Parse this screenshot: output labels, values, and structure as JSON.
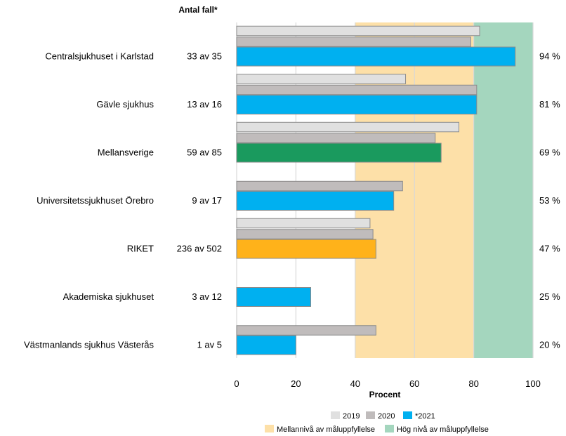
{
  "chart_data": {
    "type": "bar",
    "orientation": "horizontal",
    "count_header": "Antal fall*",
    "xlabel": "Procent",
    "xlim": [
      0,
      100
    ],
    "xticks": [
      "0",
      "20",
      "40",
      "60",
      "80",
      "100"
    ],
    "grid": true,
    "categories": [
      "Centralsjukhuset i Karlstad",
      "Gävle sjukhus",
      "Mellansverige",
      "Universitetssjukhuset Örebro",
      "RIKET",
      "Akademiska sjukhuset",
      "Västmanlands sjukhus Västerås"
    ],
    "counts": [
      "33 av 35",
      "13 av 16",
      "59 av 85",
      "9 av 17",
      "236 av 502",
      "3 av 12",
      "1 av 5"
    ],
    "value_labels": [
      "94 %",
      "81 %",
      "69 %",
      "53 %",
      "47 %",
      "25 %",
      "20 %"
    ],
    "series": [
      {
        "name": "2019",
        "color": "#e0e0e0",
        "values": [
          82,
          57,
          75,
          null,
          45,
          null,
          null
        ]
      },
      {
        "name": "2020",
        "color": "#c0bcbc",
        "values": [
          79,
          81,
          67,
          56,
          46,
          null,
          47
        ]
      },
      {
        "name": "*2021",
        "color": "#00b0f0",
        "values": [
          94,
          81,
          69,
          53,
          47,
          25,
          20
        ]
      }
    ],
    "highlight_colors": {
      "Mellansverige": "#1a9a5e",
      "RIKET": "#ffb21a"
    },
    "target_zones": [
      {
        "name": "Mellannivå av måluppfyllelse",
        "from": 40,
        "to": 80,
        "color": "#fde0a8"
      },
      {
        "name": "Hög nivå av måluppfyllelse",
        "from": 80,
        "to": 100,
        "color": "#a4d6be"
      }
    ],
    "legend_position": "bottom-center"
  }
}
